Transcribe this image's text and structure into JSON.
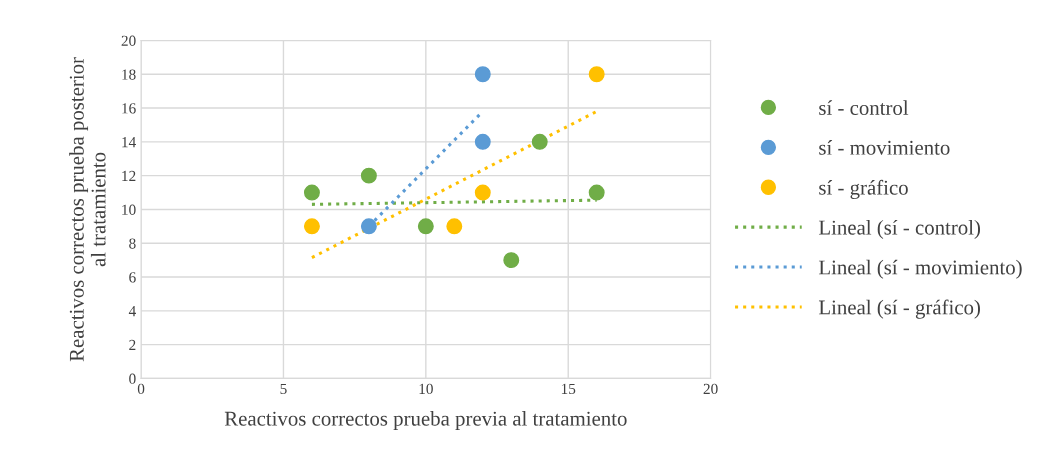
{
  "chart_data": {
    "type": "scatter",
    "xlabel": "Reactivos correctos prueba previa al tratamiento",
    "ylabel": "Reactivos correctos prueba posterior\nal tratamiento",
    "xlim": [
      0,
      20
    ],
    "xticks": [
      0,
      5,
      10,
      15,
      20
    ],
    "ylim": [
      0,
      20
    ],
    "yticks": [
      0,
      2,
      4,
      6,
      8,
      10,
      12,
      14,
      16,
      18,
      20
    ],
    "grid": true,
    "legend": "right",
    "series": [
      {
        "name": "sí - control",
        "marker": "circle",
        "color": "#70ad47",
        "x": [
          6,
          8,
          10,
          13,
          14,
          16
        ],
        "values": [
          11,
          12,
          9,
          7,
          14,
          11
        ]
      },
      {
        "name": "sí - movimiento",
        "marker": "circle",
        "color": "#5b9bd5",
        "x": [
          8,
          12,
          12
        ],
        "values": [
          9,
          18,
          14
        ]
      },
      {
        "name": "sí - gráfico",
        "marker": "circle",
        "color": "#ffc000",
        "x": [
          6,
          11,
          12,
          16
        ],
        "values": [
          9,
          9,
          11,
          18
        ]
      },
      {
        "name": "Lineal (sí - control)",
        "type": "line",
        "marker": "none",
        "line_style": "dotted",
        "color": "#70ad47",
        "x": [
          6,
          16
        ],
        "values": [
          10.3,
          10.55
        ]
      },
      {
        "name": "Lineal (sí - movimiento)",
        "type": "line",
        "marker": "none",
        "line_style": "dotted",
        "color": "#5b9bd5",
        "x": [
          8,
          12
        ],
        "values": [
          9.0,
          15.8
        ]
      },
      {
        "name": "Lineal (sí - gráfico)",
        "type": "line",
        "marker": "none",
        "line_style": "dotted",
        "color": "#ffc000",
        "x": [
          6,
          16
        ],
        "values": [
          7.15,
          15.8
        ]
      }
    ]
  }
}
